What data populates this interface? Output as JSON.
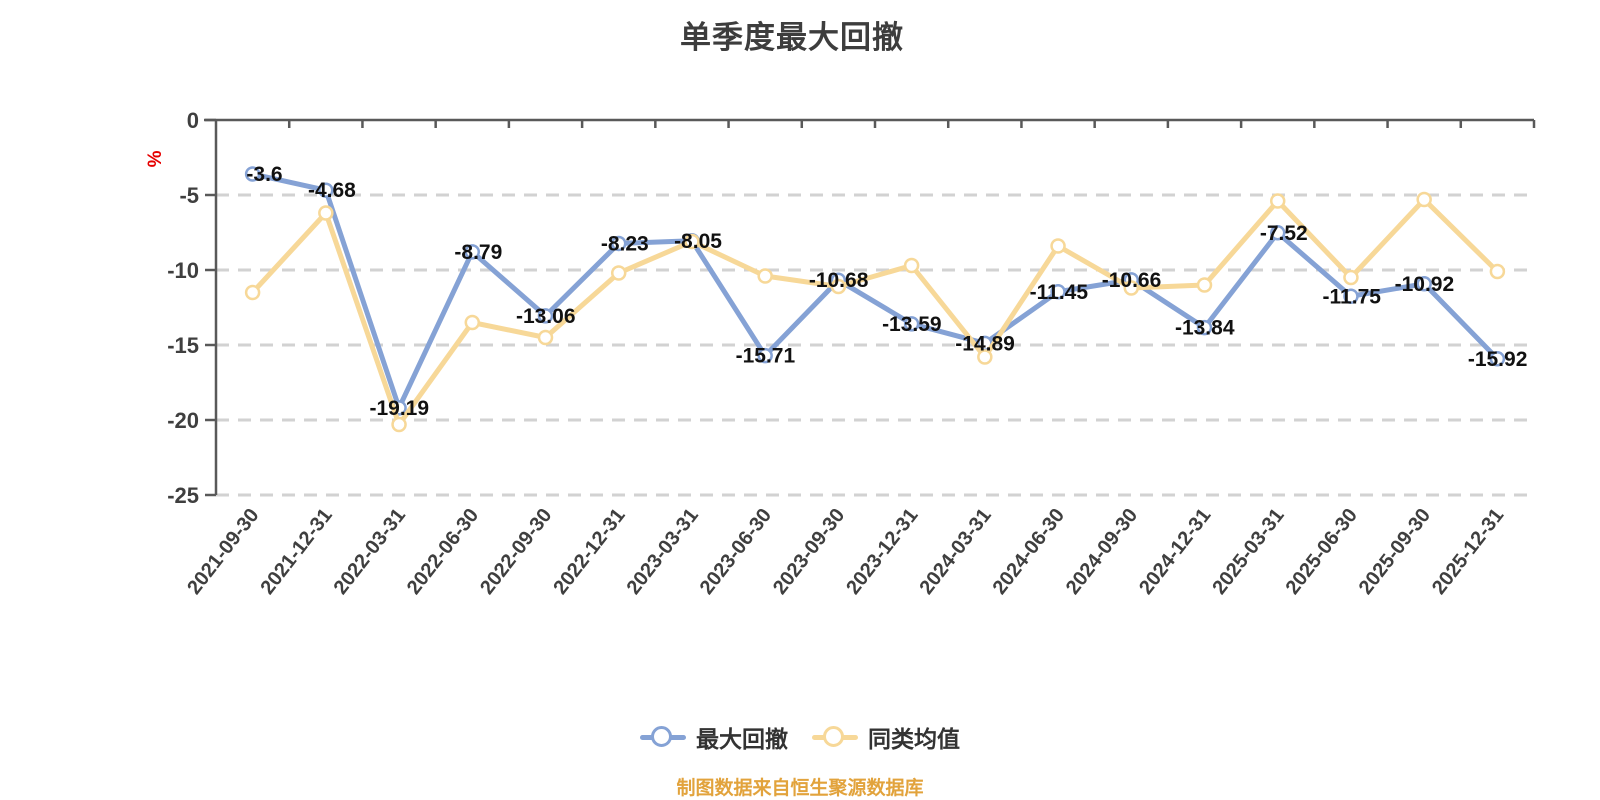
{
  "chart_data": {
    "type": "line",
    "title": "单季度最大回撤",
    "y_unit": "%",
    "y_unit_color": "#e60000",
    "categories": [
      "2021-09-30",
      "2021-12-31",
      "2022-03-31",
      "2022-06-30",
      "2022-09-30",
      "2022-12-31",
      "2023-03-31",
      "2023-06-30",
      "2023-09-30",
      "2023-12-31",
      "2024-03-31",
      "2024-06-30",
      "2024-09-30",
      "2024-12-31",
      "2025-03-31",
      "2025-06-30",
      "2025-09-30",
      "2025-12-31"
    ],
    "series": [
      {
        "name": "最大回撤",
        "color": "#85a2d5",
        "marker": "white-circle",
        "show_labels": true,
        "values": [
          -3.6,
          -4.68,
          -19.19,
          -8.79,
          -13.06,
          -8.23,
          -8.05,
          -15.71,
          -10.68,
          -13.59,
          -14.89,
          -11.45,
          -10.66,
          -13.84,
          -7.52,
          -11.75,
          -10.92,
          -15.92
        ]
      },
      {
        "name": "同类均值",
        "color": "#f7d898",
        "marker": "white-circle",
        "show_labels": false,
        "values": [
          -11.5,
          -6.2,
          -20.3,
          -13.5,
          -14.5,
          -10.2,
          -8.1,
          -10.4,
          -11.1,
          -9.7,
          -15.8,
          -8.4,
          -11.2,
          -11.0,
          -5.4,
          -10.5,
          -5.3,
          -10.1
        ]
      }
    ],
    "ylim": [
      -25,
      0
    ],
    "yticks": [
      0,
      -5,
      -10,
      -15,
      -20,
      -25
    ],
    "grid": "horizontal-dashed",
    "grid_color": "#d2d2d2",
    "axis_color": "#595959",
    "label_color": "#111111",
    "tick_label_color": "#3f3f3f",
    "legend_position": "bottom",
    "footer": "制图数据来自恒生聚源数据库",
    "footer_color": "#e2a33c"
  }
}
